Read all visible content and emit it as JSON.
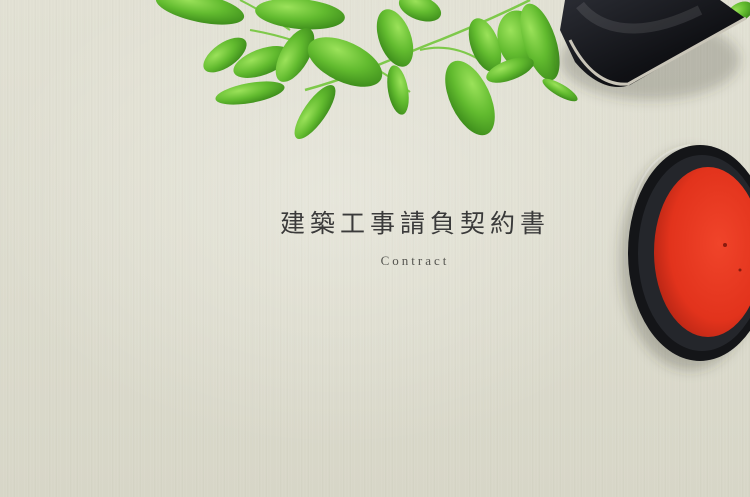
{
  "title": {
    "main": "建築工事請負契約書",
    "sub": "Contract"
  },
  "objects": {
    "leaves": "green-leaf-sprig",
    "stamp_case": "black-hanko-case",
    "ink_pad": "red-shuniku-ink-pad"
  },
  "colors": {
    "background": "#dcdbcd",
    "leaf": "#6cc23a",
    "ink_red": "#e5321d",
    "case_black": "#151619"
  }
}
